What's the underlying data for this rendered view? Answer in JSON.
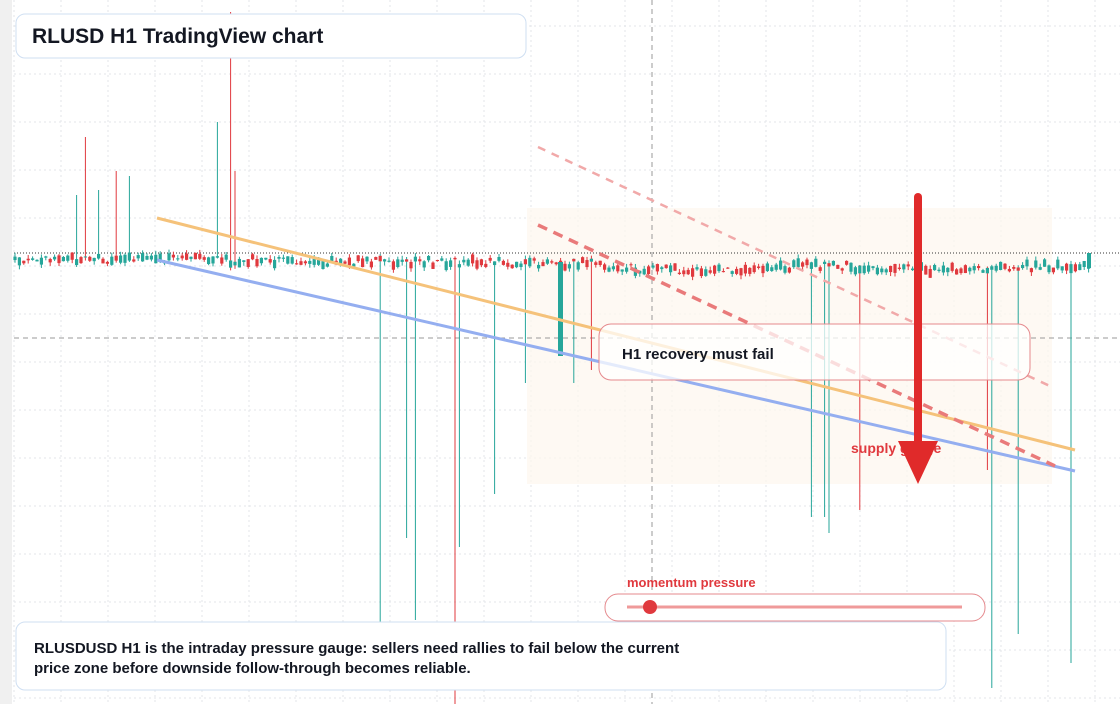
{
  "header": {
    "title": "RLUSD H1 TradingView chart"
  },
  "annotations": {
    "recovery": "H1 recovery must fail",
    "supply": "supply gauge",
    "momentum": "momentum pressure"
  },
  "summary": {
    "lines": [
      "RLUSDUSD H1 is the intraday pressure gauge: sellers need rallies to fail below the current",
      "price zone before downside follow-through becomes reliable."
    ]
  }
}
